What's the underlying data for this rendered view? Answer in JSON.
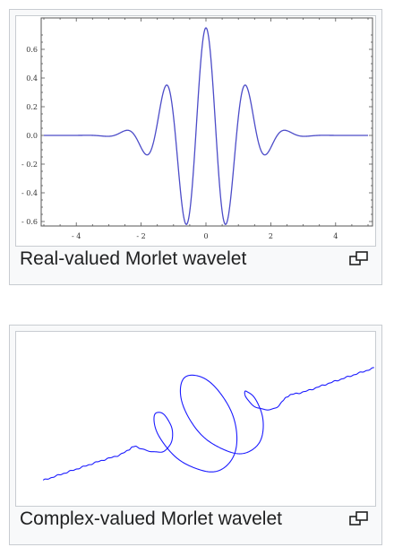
{
  "figures": [
    {
      "caption": "Real-valued Morlet wavelet",
      "plot": {
        "y_ticks": [
          "0.6",
          "0.4",
          "0.2",
          "0.0",
          "- 0.2",
          "- 0.4",
          "- 0.6"
        ],
        "x_ticks": [
          "- 4",
          "- 2",
          "0",
          "2",
          "4"
        ]
      },
      "magnify_icon": "magnify-clip-icon"
    },
    {
      "caption": "Complex-valued Morlet wavelet",
      "magnify_icon": "magnify-clip-icon"
    }
  ],
  "chart_data": [
    {
      "type": "line",
      "title": "",
      "xlabel": "",
      "ylabel": "",
      "xlim": [
        -5,
        5
      ],
      "ylim": [
        -0.7,
        0.75
      ],
      "function": "cos(5x)*exp(-x^2/2)*0.75",
      "series": [
        {
          "color": "#4c4cc8"
        }
      ],
      "grid": false
    },
    {
      "type": "line",
      "title": "",
      "series": [
        {
          "color": "#1a1aff"
        }
      ]
    }
  ],
  "colors": {
    "line_real": "#4c4cc8",
    "line_complex": "#1a1aff",
    "border": "#c8ccd1",
    "caption_text": "#202122"
  }
}
